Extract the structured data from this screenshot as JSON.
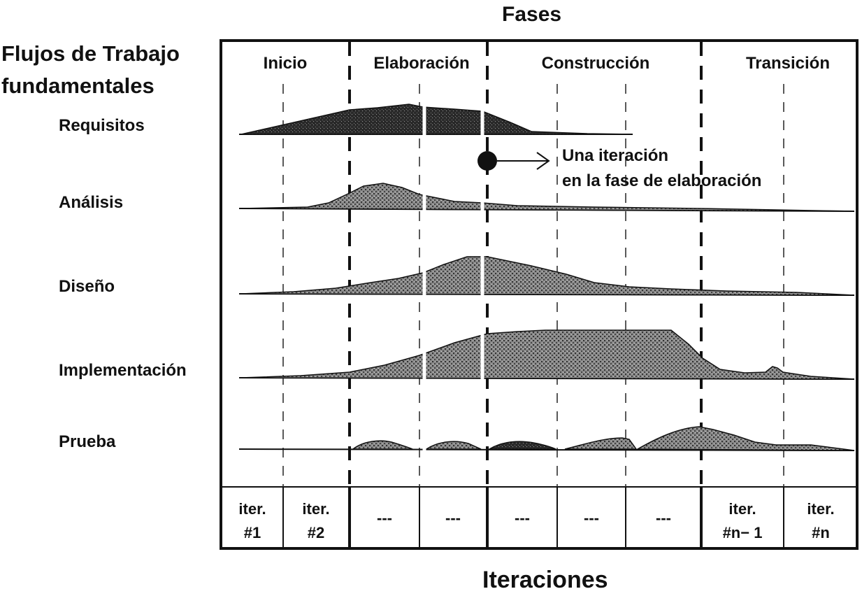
{
  "header": {
    "phases_title": "Fases"
  },
  "left": {
    "title_line1": "Flujos de Trabajo",
    "title_line2": "fundamentales",
    "workflows": [
      "Requisitos",
      "Análisis",
      "Diseño",
      "Implementación",
      "Prueba"
    ]
  },
  "phases": [
    "Inicio",
    "Elaboración",
    "Construcción",
    "Transición"
  ],
  "iterations": [
    [
      "iter.",
      "#1"
    ],
    [
      "iter.",
      "#2"
    ],
    [
      "---"
    ],
    [
      "---"
    ],
    [
      "---"
    ],
    [
      "---"
    ],
    [
      "---"
    ],
    [
      "iter.",
      "#n− 1"
    ],
    [
      "iter.",
      "#n"
    ]
  ],
  "annotation": {
    "line1": "Una iteración",
    "line2": "en la fase de elaboración"
  },
  "footer": {
    "iterations_title": "Iteraciones"
  },
  "colors": {
    "shade": "#555555",
    "ink": "#111111",
    "background": "#ffffff"
  }
}
